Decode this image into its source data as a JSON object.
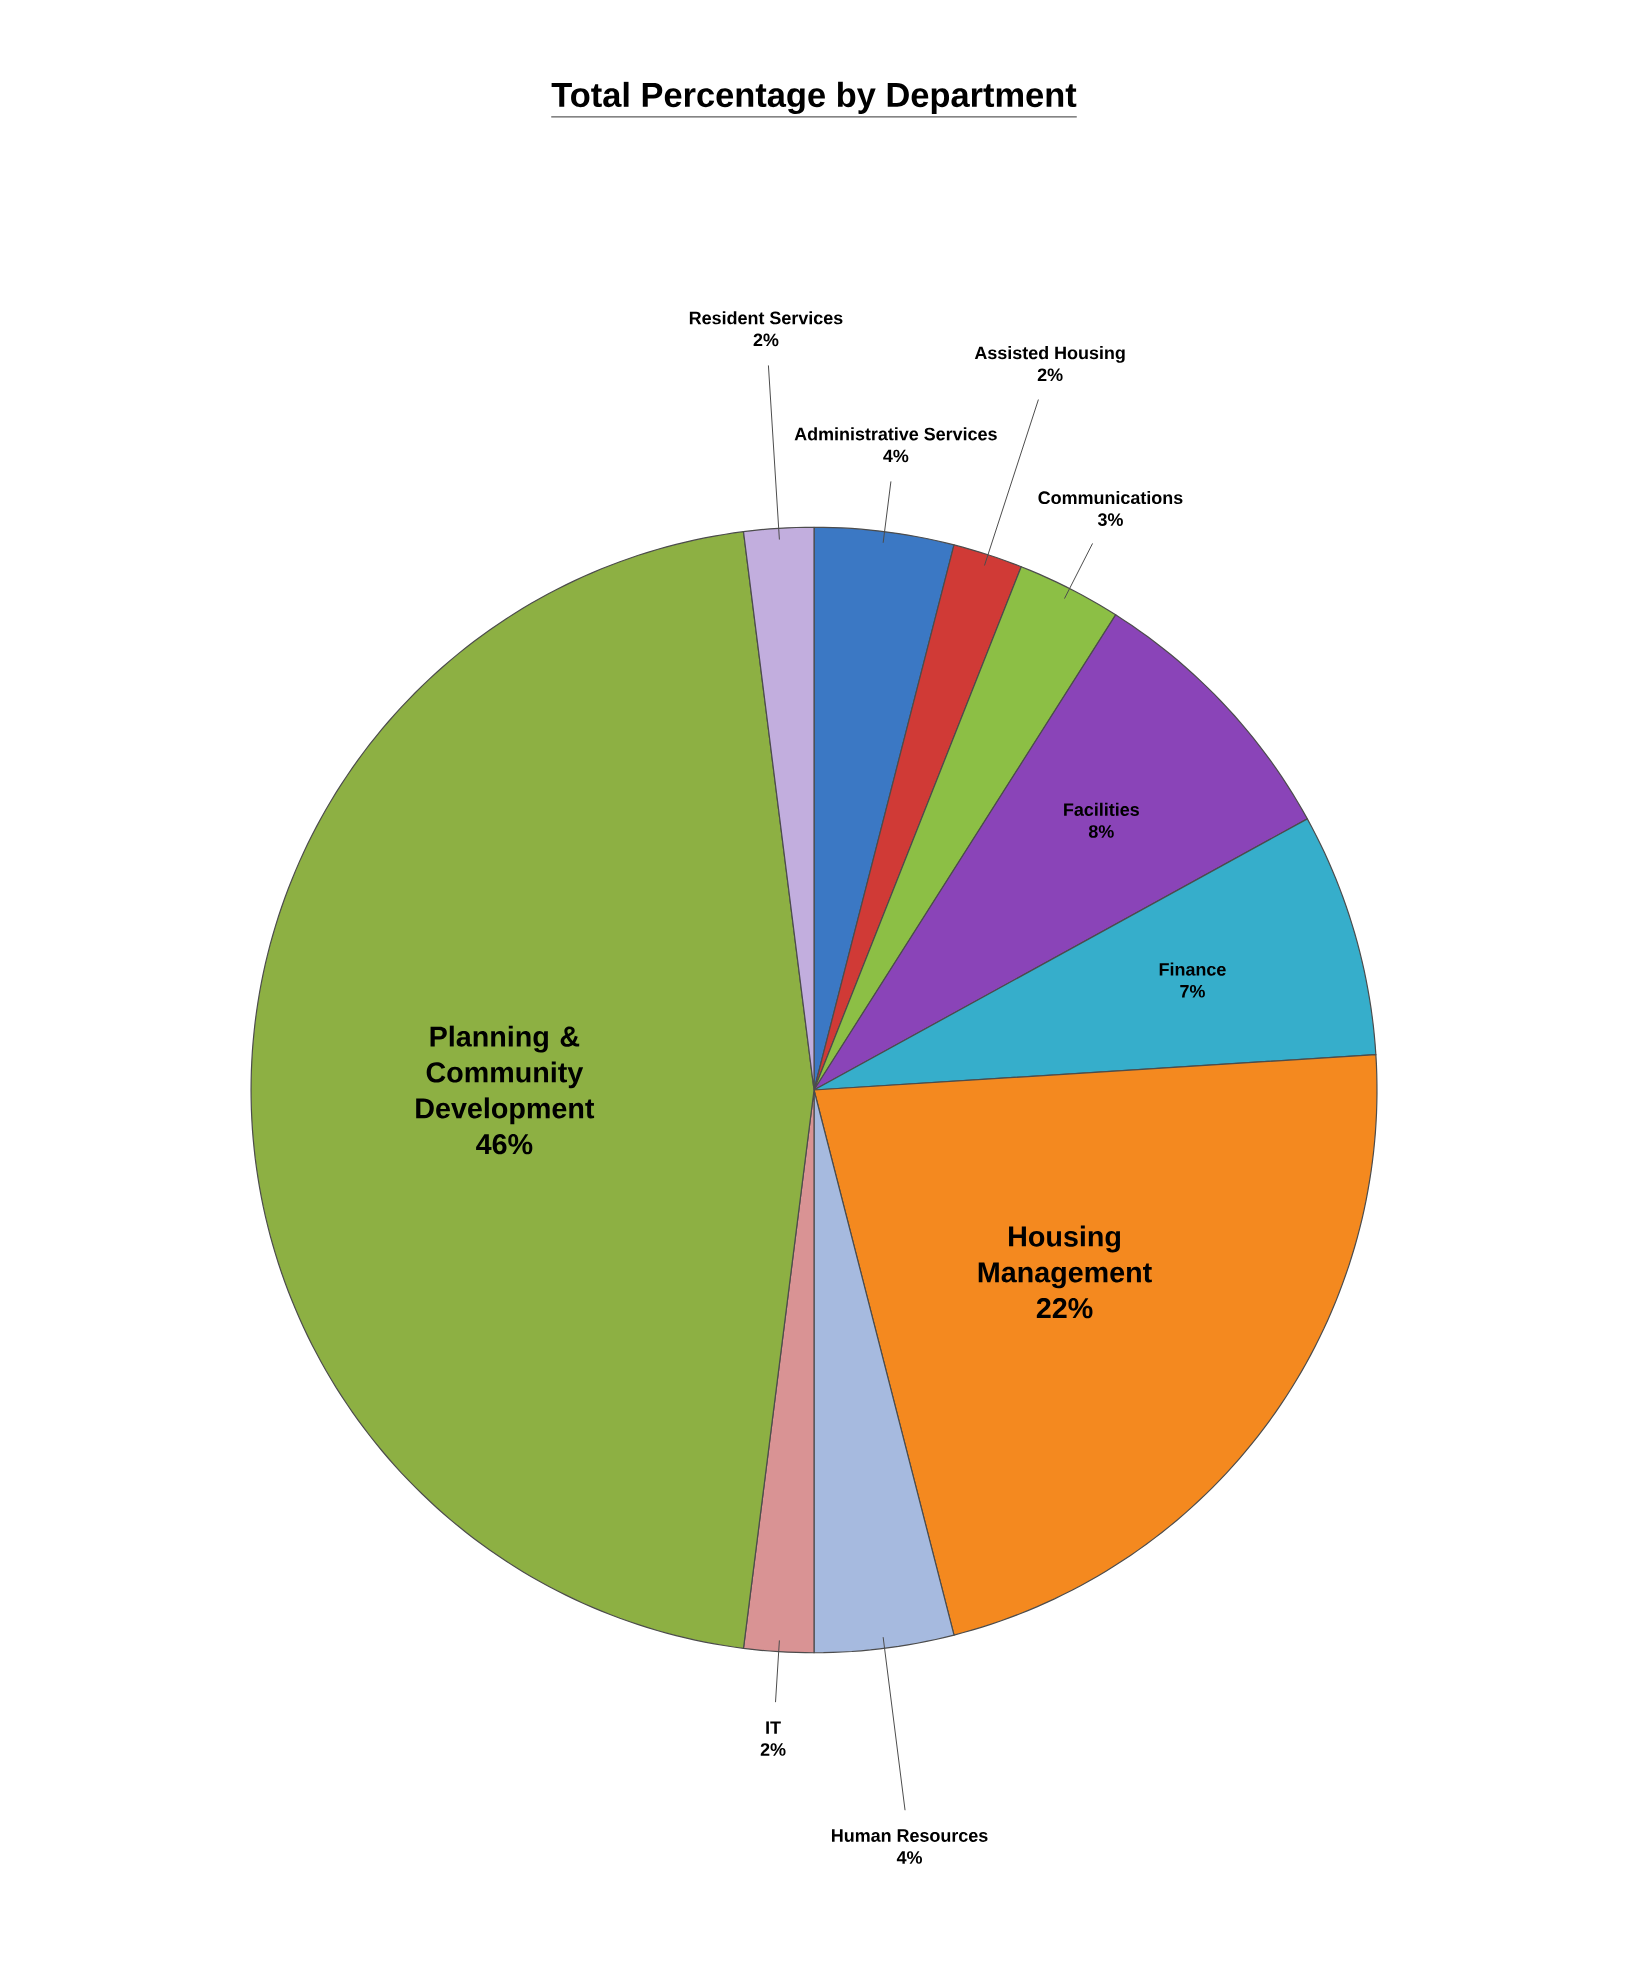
{
  "chart_data": {
    "type": "pie",
    "title": "Total Percentage by Department",
    "categories": [
      "Administrative Services",
      "Assisted Housing",
      "Communications",
      "Facilities",
      "Finance",
      "Housing Management",
      "Human Resources",
      "IT",
      "Planning & Community Development",
      "Resident Services"
    ],
    "values": [
      4,
      2,
      3,
      8,
      7,
      22,
      4,
      2,
      46,
      2
    ],
    "value_labels": [
      "4%",
      "2%",
      "3%",
      "8%",
      "7%",
      "22%",
      "4%",
      "2%",
      "46%",
      "2%"
    ],
    "colors": [
      "#3b78c4",
      "#d03a36",
      "#8cbf45",
      "#8a44b8",
      "#36aecb",
      "#f4891f",
      "#a6badf",
      "#d99394",
      "#8db043",
      "#c2aede"
    ]
  }
}
